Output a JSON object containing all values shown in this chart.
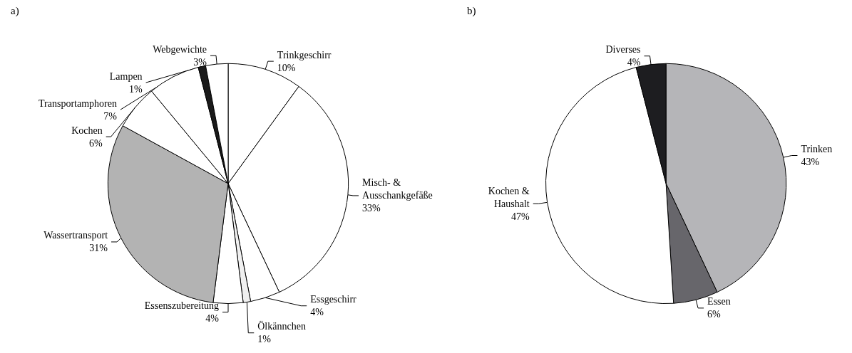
{
  "chart_data": [
    {
      "type": "pie",
      "title": "a)",
      "categories": [
        "Trinkgeschirr",
        "Misch- &\nAusschankgefäße",
        "Essgeschirr",
        "Ölkännchen",
        "Essenszubereitung",
        "Wassertransport",
        "Kochen",
        "Transportamphoren",
        "Lampen",
        "Webgewichte"
      ],
      "values": [
        10,
        33,
        4,
        1,
        4,
        31,
        6,
        7,
        1,
        3
      ],
      "value_labels": [
        "10%",
        "33%",
        "4%",
        "1%",
        "4%",
        "31%",
        "6%",
        "7%",
        "1%",
        "3%"
      ],
      "colors": [
        "#ffffff",
        "#ffffff",
        "#ffffff",
        "#f0f0f0",
        "#ffffff",
        "#b3b3b3",
        "#ffffff",
        "#ffffff",
        "#1a1a1a",
        "#ffffff"
      ]
    },
    {
      "type": "pie",
      "title": "b)",
      "categories": [
        "Trinken",
        "Essen",
        "Kochen &\nHaushalt",
        "Diverses"
      ],
      "values": [
        43,
        6,
        47,
        4
      ],
      "value_labels": [
        "43%",
        "6%",
        "47%",
        "4%"
      ],
      "colors": [
        "#b5b5b8",
        "#67666b",
        "#ffffff",
        "#1d1d20"
      ]
    }
  ]
}
